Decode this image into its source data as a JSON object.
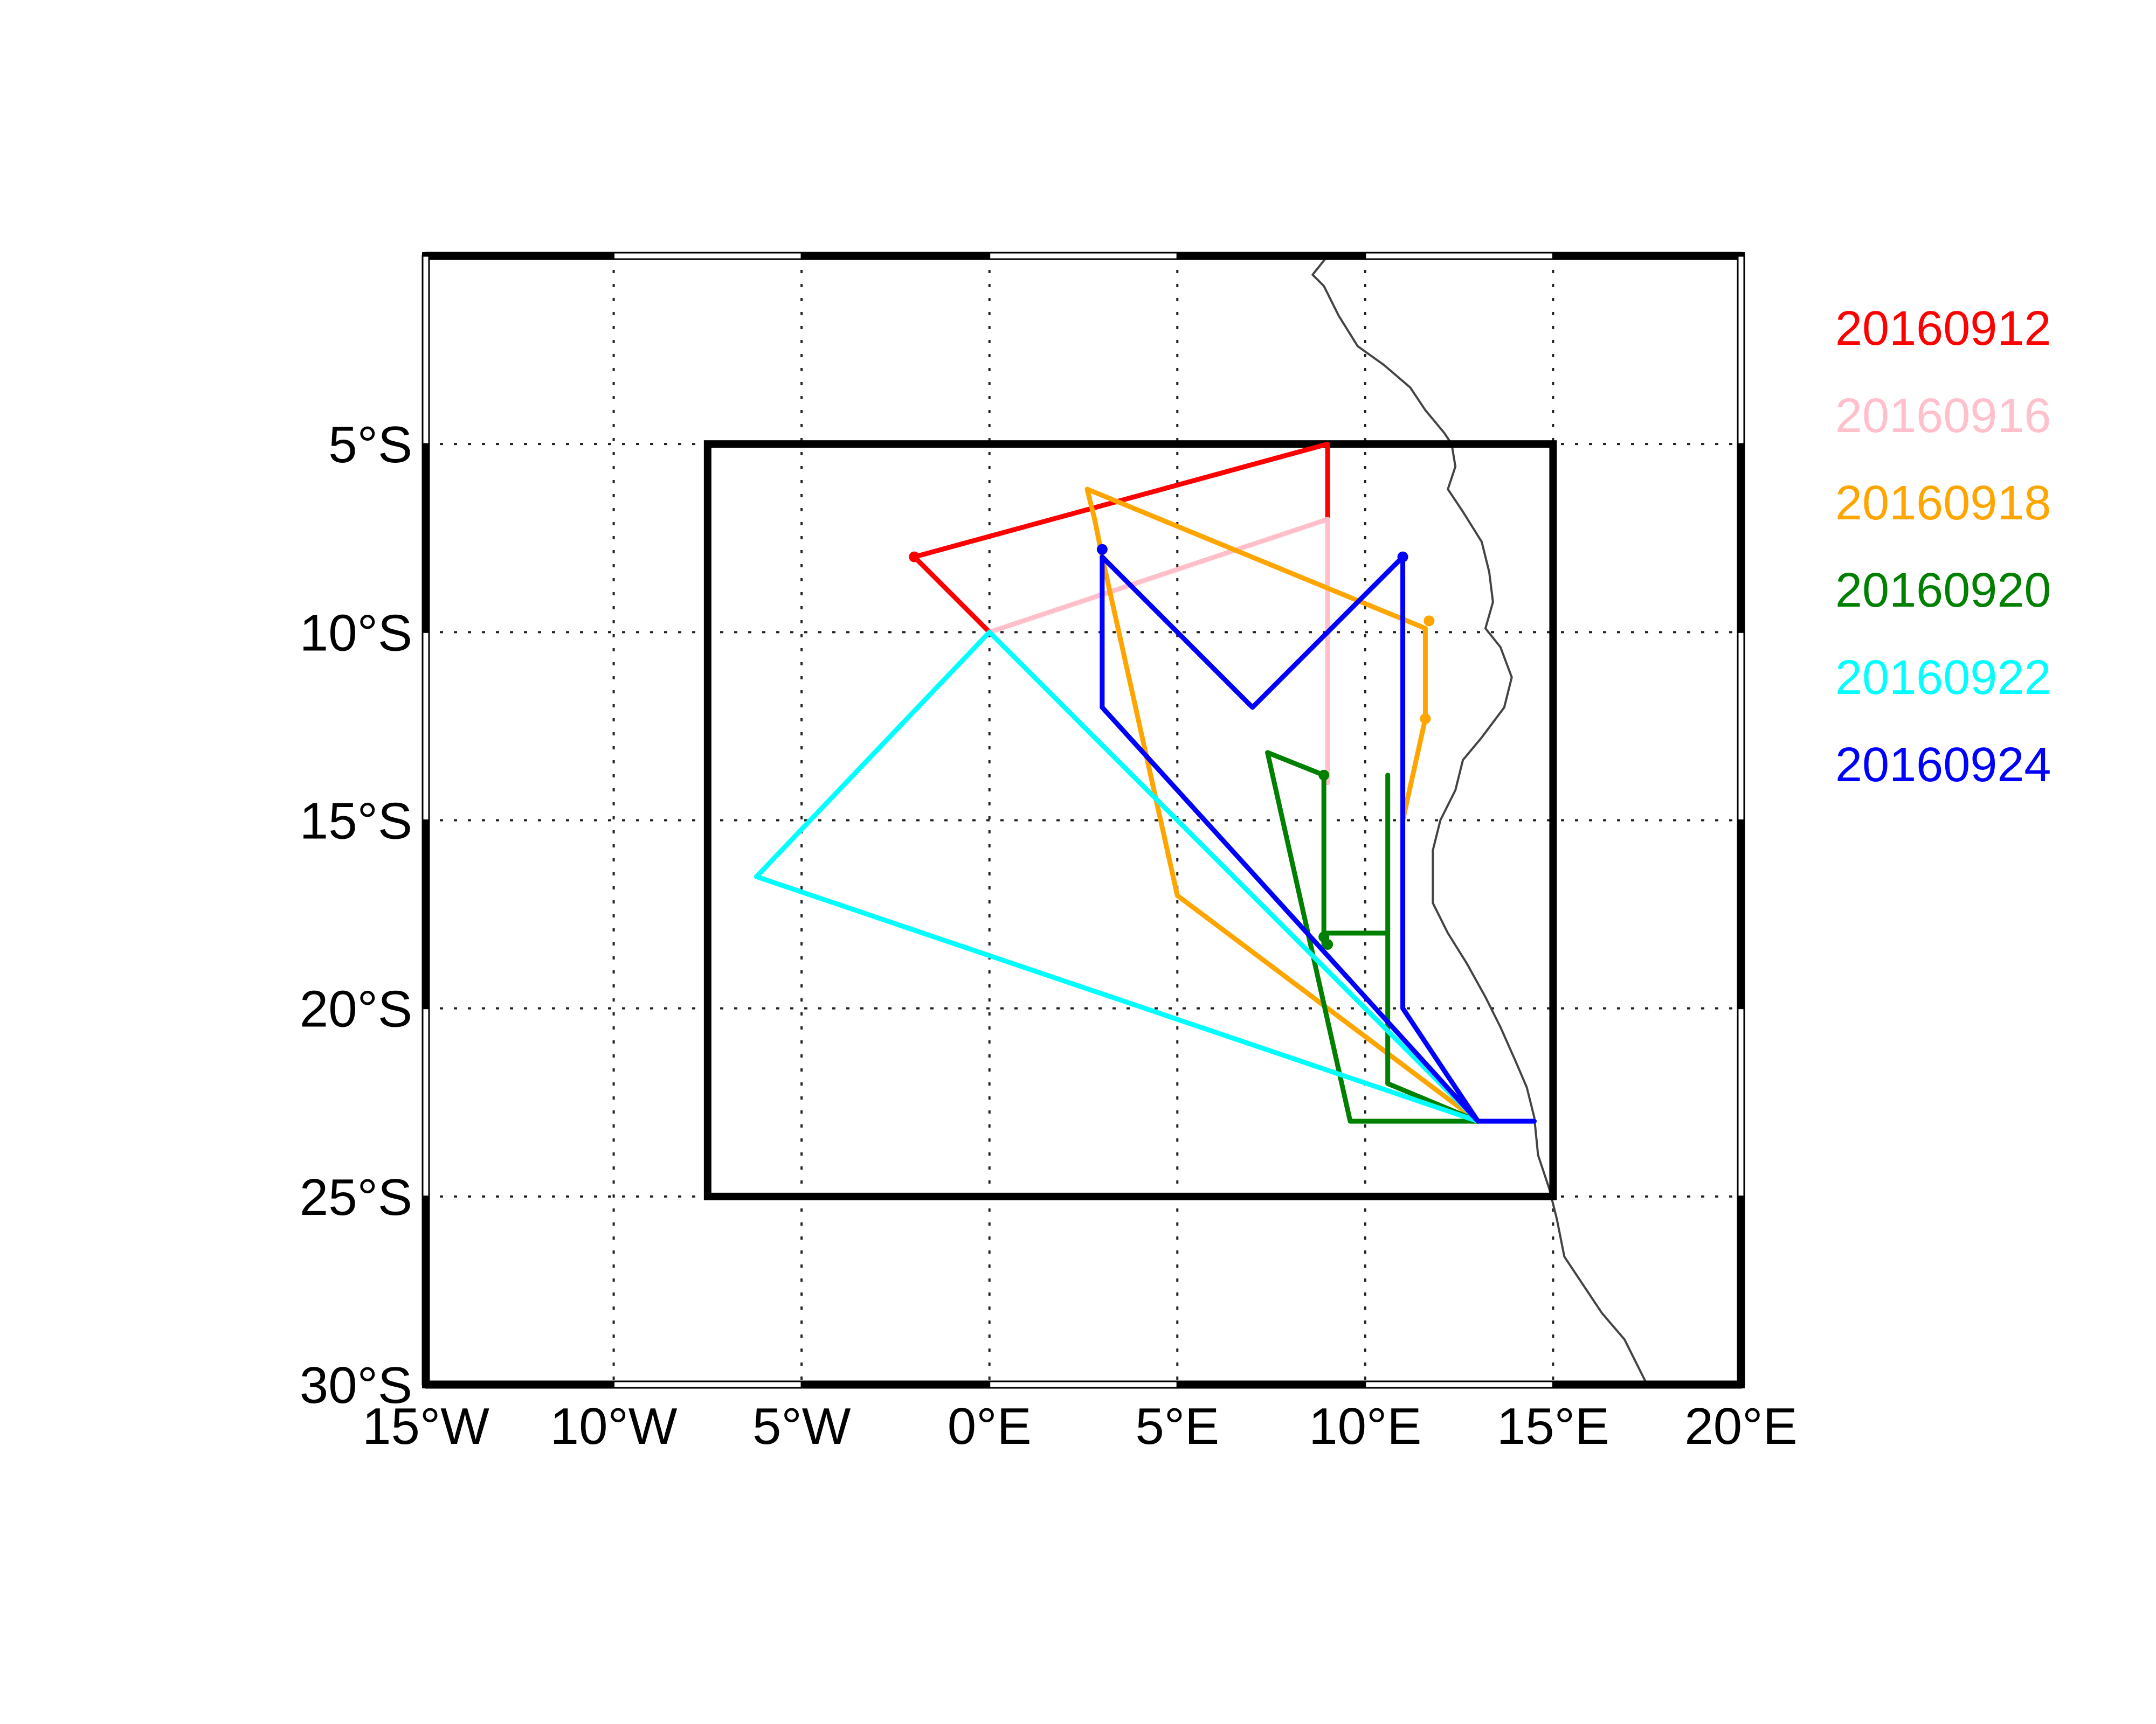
{
  "map": {
    "x_range": [
      -15,
      20
    ],
    "y_range": [
      -30,
      0
    ],
    "x_ticks": [
      {
        "value": -15,
        "label": "15°W"
      },
      {
        "value": -10,
        "label": "10°W"
      },
      {
        "value": -5,
        "label": "5°W"
      },
      {
        "value": 0,
        "label": "0°E"
      },
      {
        "value": 5,
        "label": "5°E"
      },
      {
        "value": 10,
        "label": "10°E"
      },
      {
        "value": 15,
        "label": "15°E"
      },
      {
        "value": 20,
        "label": "20°E"
      }
    ],
    "y_ticks": [
      {
        "value": -5,
        "label": "5°S"
      },
      {
        "value": -10,
        "label": "10°S"
      },
      {
        "value": -15,
        "label": "15°S"
      },
      {
        "value": -20,
        "label": "20°S"
      },
      {
        "value": -25,
        "label": "25°S"
      },
      {
        "value": -30,
        "label": "30°S"
      }
    ],
    "grid": "dotted",
    "domain_box": {
      "lon": [
        -7.5,
        15
      ],
      "lat": [
        -25,
        -5
      ]
    },
    "coastline": [
      [
        9.0,
        0.0
      ],
      [
        8.6,
        -0.5
      ],
      [
        8.9,
        -0.8
      ],
      [
        9.3,
        -1.6
      ],
      [
        9.8,
        -2.4
      ],
      [
        10.5,
        -2.9
      ],
      [
        11.2,
        -3.5
      ],
      [
        11.6,
        -4.1
      ],
      [
        12.1,
        -4.7
      ],
      [
        12.3,
        -5.0
      ],
      [
        12.4,
        -5.6
      ],
      [
        12.2,
        -6.2
      ],
      [
        12.6,
        -6.8
      ],
      [
        13.1,
        -7.6
      ],
      [
        13.3,
        -8.4
      ],
      [
        13.4,
        -9.2
      ],
      [
        13.2,
        -9.9
      ],
      [
        13.6,
        -10.4
      ],
      [
        13.9,
        -11.2
      ],
      [
        13.7,
        -12.0
      ],
      [
        13.1,
        -12.8
      ],
      [
        12.6,
        -13.4
      ],
      [
        12.4,
        -14.2
      ],
      [
        12.0,
        -15.0
      ],
      [
        11.8,
        -15.8
      ],
      [
        11.8,
        -16.5
      ],
      [
        11.8,
        -17.2
      ],
      [
        12.2,
        -18.0
      ],
      [
        12.7,
        -18.8
      ],
      [
        13.2,
        -19.7
      ],
      [
        13.6,
        -20.5
      ],
      [
        14.0,
        -21.4
      ],
      [
        14.3,
        -22.1
      ],
      [
        14.5,
        -22.9
      ],
      [
        14.6,
        -23.9
      ],
      [
        14.9,
        -24.8
      ],
      [
        15.1,
        -25.6
      ],
      [
        15.3,
        -26.6
      ],
      [
        15.7,
        -27.2
      ],
      [
        16.3,
        -28.1
      ],
      [
        16.9,
        -28.8
      ],
      [
        17.4,
        -29.8
      ],
      [
        17.5,
        -30.0
      ]
    ],
    "coastline_color": "#444444"
  },
  "legend": {
    "entries": [
      {
        "label": "20160912",
        "color": "#ff0000"
      },
      {
        "label": "20160916",
        "color": "#ffc0cb"
      },
      {
        "label": "20160918",
        "color": "#ffa500"
      },
      {
        "label": "20160920",
        "color": "#008000"
      },
      {
        "label": "20160922",
        "color": "#00ffff"
      },
      {
        "label": "20160924",
        "color": "#0000ff"
      }
    ]
  },
  "chart_data": {
    "type": "line",
    "xlabel": "",
    "ylabel": "",
    "xlim": [
      -15,
      20
    ],
    "ylim": [
      -30,
      0
    ],
    "series": [
      {
        "name": "20160912",
        "color": "#ff0000",
        "points": [
          [
            9.0,
            -5.0
          ],
          [
            9.0,
            -7.0
          ],
          [
            9.0,
            -5.0
          ],
          [
            -2.0,
            -8.0
          ],
          [
            0.0,
            -10.0
          ]
        ],
        "markers": [
          [
            -2.0,
            -8.0
          ]
        ]
      },
      {
        "name": "20160916",
        "color": "#ffc0cb",
        "points": [
          [
            0.0,
            -10.0
          ],
          [
            9.0,
            -7.0
          ],
          [
            9.0,
            -14.0
          ]
        ],
        "markers": []
      },
      {
        "name": "20160918",
        "color": "#ffa500",
        "points": [
          [
            13.0,
            -23.0
          ],
          [
            5.0,
            -17.0
          ],
          [
            3.0,
            -8.0
          ],
          [
            2.8,
            -7.0
          ],
          [
            2.6,
            -6.2
          ],
          [
            11.6,
            -9.9
          ],
          [
            11.6,
            -12.3
          ],
          [
            11.0,
            -15.0
          ]
        ],
        "markers": [
          [
            11.7,
            -9.7
          ],
          [
            11.6,
            -12.3
          ]
        ]
      },
      {
        "name": "20160920",
        "color": "#008000",
        "points": [
          [
            13.0,
            -23.0
          ],
          [
            9.6,
            -23.0
          ],
          [
            7.4,
            -13.2
          ],
          [
            8.9,
            -13.8
          ],
          [
            8.9,
            -18.3
          ],
          [
            8.9,
            -18.0
          ],
          [
            10.6,
            -18.0
          ],
          [
            10.6,
            -13.8
          ],
          [
            10.6,
            -22.0
          ],
          [
            13.0,
            -23.0
          ]
        ],
        "markers": [
          [
            8.9,
            -13.8
          ],
          [
            8.9,
            -18.1
          ],
          [
            9.0,
            -18.3
          ]
        ]
      },
      {
        "name": "20160922",
        "color": "#00ffff",
        "points": [
          [
            13.0,
            -23.0
          ],
          [
            0.0,
            -10.0
          ],
          [
            -6.2,
            -16.5
          ],
          [
            13.0,
            -23.0
          ]
        ],
        "markers": []
      },
      {
        "name": "20160924",
        "color": "#0000ff",
        "points": [
          [
            14.5,
            -23.0
          ],
          [
            13.0,
            -23.0
          ],
          [
            11.0,
            -20.0
          ],
          [
            11.0,
            -8.0
          ],
          [
            7.0,
            -12.0
          ],
          [
            3.0,
            -8.0
          ],
          [
            3.0,
            -12.0
          ],
          [
            13.0,
            -23.0
          ]
        ],
        "markers": [
          [
            11.0,
            -8.0
          ],
          [
            3.0,
            -7.8
          ]
        ]
      }
    ]
  }
}
